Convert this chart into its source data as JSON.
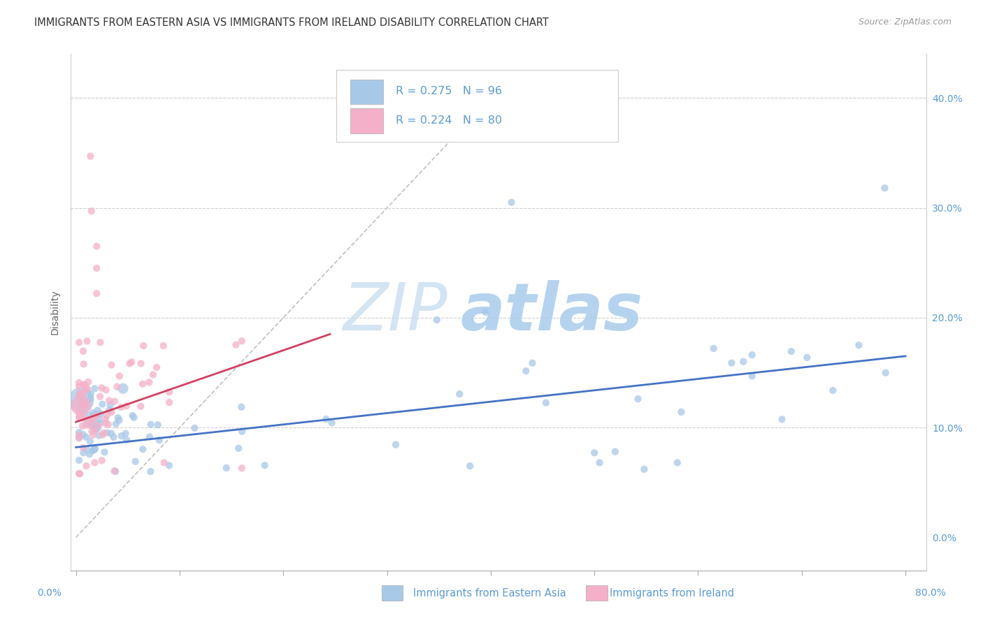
{
  "title": "IMMIGRANTS FROM EASTERN ASIA VS IMMIGRANTS FROM IRELAND DISABILITY CORRELATION CHART",
  "source": "Source: ZipAtlas.com",
  "ylabel": "Disability",
  "blue_R": 0.275,
  "blue_N": 96,
  "pink_R": 0.224,
  "pink_N": 80,
  "blue_color": "#a8c8e8",
  "pink_color": "#f4b0c8",
  "blue_line_color": "#4472c4",
  "pink_line_color": "#d04060",
  "diag_line_color": "#c0c0c0",
  "legend_label_blue": "Immigrants from Eastern Asia",
  "legend_label_pink": "Immigrants from Ireland",
  "watermark_zip": "ZIP",
  "watermark_atlas": "atlas",
  "xlim": [
    -0.005,
    0.82
  ],
  "ylim": [
    -0.03,
    0.44
  ],
  "blue_line_x0": 0.0,
  "blue_line_x1": 0.8,
  "blue_line_y0": 0.082,
  "blue_line_y1": 0.165,
  "pink_line_x0": 0.0,
  "pink_line_x1": 0.245,
  "pink_line_y0": 0.105,
  "pink_line_y1": 0.185
}
